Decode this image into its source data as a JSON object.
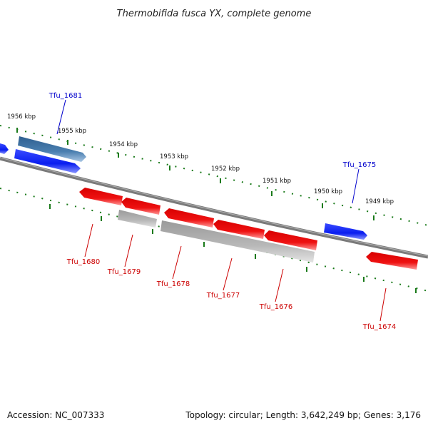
{
  "title": "Thermobifida fusca YX, complete genome",
  "footer": {
    "accession": "Accession: NC_007333",
    "summary": "Topology: circular; Length: 3,642,249 bp; Genes: 3,176"
  },
  "colors": {
    "backbone": "#7a7a7a",
    "forward_gene": "#0a1ef0",
    "forward_gene_alt": "#4a7fb0",
    "reverse_gene": "#ee1111",
    "reverse_gene_alt": "#b8b8b8",
    "tick_mark": "#1a7a1a",
    "forward_label": "#0000cc",
    "reverse_label": "#cc0000"
  },
  "scale_labels": [
    "1956 kbp",
    "1955 kbp",
    "1954 kbp",
    "1953 kbp",
    "1952 kbp",
    "1951 kbp",
    "1950 kbp",
    "1949 kbp"
  ],
  "gene_labels": {
    "tfu_1681": "Tfu_1681",
    "tfu_1675": "Tfu_1675",
    "tfu_1680": "Tfu_1680",
    "tfu_1679": "Tfu_1679",
    "tfu_1678": "Tfu_1678",
    "tfu_1677": "Tfu_1677",
    "tfu_1676": "Tfu_1676",
    "tfu_1674": "Tfu_1674"
  }
}
